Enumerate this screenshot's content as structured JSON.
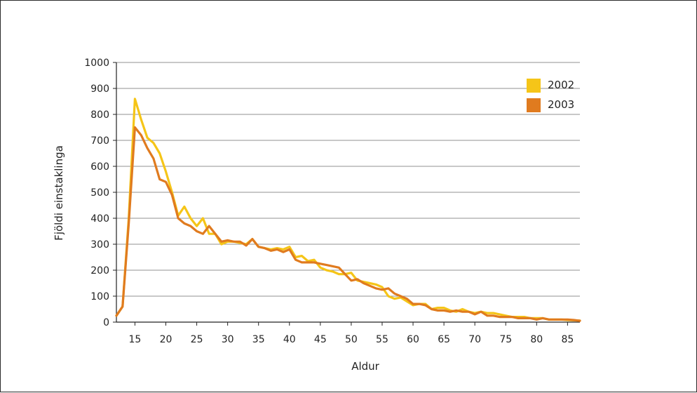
{
  "chart_data": {
    "type": "line",
    "title": "",
    "xlabel": "Aldur",
    "ylabel": "Fjöldi einstaklinga",
    "xlim": [
      12,
      87
    ],
    "ylim": [
      0,
      1000
    ],
    "x_ticks": [
      15,
      20,
      25,
      30,
      35,
      40,
      45,
      50,
      55,
      60,
      65,
      70,
      75,
      80,
      85
    ],
    "y_ticks": [
      0,
      100,
      200,
      300,
      400,
      500,
      600,
      700,
      800,
      900,
      1000
    ],
    "grid": true,
    "legend_position": "top-right",
    "x": [
      12,
      13,
      14,
      15,
      16,
      17,
      18,
      19,
      20,
      21,
      22,
      23,
      24,
      25,
      26,
      27,
      28,
      29,
      30,
      31,
      32,
      33,
      34,
      35,
      36,
      37,
      38,
      39,
      40,
      41,
      42,
      43,
      44,
      45,
      46,
      47,
      48,
      49,
      50,
      51,
      52,
      53,
      54,
      55,
      56,
      57,
      58,
      59,
      60,
      61,
      62,
      63,
      64,
      65,
      66,
      67,
      68,
      69,
      70,
      71,
      72,
      73,
      74,
      75,
      76,
      77,
      78,
      79,
      80,
      81,
      82,
      83,
      84,
      85,
      86,
      87
    ],
    "series": [
      {
        "name": "2002",
        "color": "#F5C518",
        "values": [
          25,
          60,
          400,
          860,
          780,
          710,
          690,
          650,
          580,
          500,
          410,
          445,
          400,
          370,
          400,
          340,
          340,
          300,
          310,
          310,
          305,
          300,
          320,
          290,
          285,
          280,
          285,
          280,
          290,
          250,
          255,
          235,
          240,
          210,
          200,
          195,
          185,
          185,
          190,
          160,
          155,
          150,
          145,
          135,
          100,
          90,
          95,
          80,
          65,
          70,
          70,
          50,
          55,
          55,
          45,
          40,
          50,
          40,
          35,
          40,
          35,
          35,
          30,
          25,
          20,
          20,
          20,
          15,
          15,
          15,
          10,
          10,
          10,
          8,
          7,
          6
        ]
      },
      {
        "name": "2003",
        "color": "#E07B1F",
        "values": [
          25,
          60,
          380,
          750,
          720,
          670,
          630,
          550,
          540,
          490,
          400,
          380,
          370,
          350,
          340,
          370,
          340,
          310,
          315,
          310,
          310,
          295,
          320,
          290,
          285,
          275,
          280,
          270,
          280,
          240,
          230,
          230,
          230,
          225,
          220,
          215,
          210,
          185,
          160,
          165,
          150,
          140,
          130,
          125,
          130,
          110,
          100,
          90,
          70,
          70,
          65,
          50,
          45,
          45,
          40,
          45,
          40,
          40,
          30,
          40,
          25,
          25,
          20,
          20,
          20,
          15,
          15,
          15,
          10,
          15,
          10,
          10,
          10,
          10,
          8,
          5
        ]
      }
    ]
  }
}
